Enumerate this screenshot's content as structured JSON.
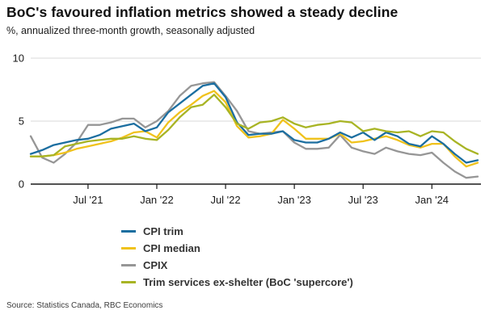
{
  "source": "Source: Statistics Canada, RBC Economics",
  "chart_data": {
    "type": "line",
    "title": "BoC's favoured inflation metrics showed a steady decline",
    "subtitle": "%, annualized three-month growth, seasonally adjusted",
    "xlabel": "",
    "ylabel": "%",
    "ylim": [
      0,
      10
    ],
    "y_ticks": [
      0,
      5,
      10
    ],
    "grid": "horizontal",
    "legend_position": "bottom-left",
    "x": [
      "Feb '21",
      "Mar '21",
      "Apr '21",
      "May '21",
      "Jun '21",
      "Jul '21",
      "Aug '21",
      "Sep '21",
      "Oct '21",
      "Nov '21",
      "Dec '21",
      "Jan '22",
      "Feb '22",
      "Mar '22",
      "Apr '22",
      "May '22",
      "Jun '22",
      "Jul '22",
      "Aug '22",
      "Sep '22",
      "Oct '22",
      "Nov '22",
      "Dec '22",
      "Jan '23",
      "Feb '23",
      "Mar '23",
      "Apr '23",
      "May '23",
      "Jun '23",
      "Jul '23",
      "Aug '23",
      "Sep '23",
      "Oct '23",
      "Nov '23",
      "Dec '23",
      "Jan '24",
      "Feb '24",
      "Mar '24",
      "Apr '24",
      "May '24"
    ],
    "x_tick_labels": [
      "Jul '21",
      "Jan '22",
      "Jul '22",
      "Jan '23",
      "Jul '23",
      "Jan '24"
    ],
    "x_tick_indices": [
      5,
      11,
      17,
      23,
      29,
      35
    ],
    "series": [
      {
        "name": "CPI trim",
        "color": "#1b6ea0",
        "values": [
          2.4,
          2.7,
          3.1,
          3.3,
          3.5,
          3.6,
          3.9,
          4.4,
          4.6,
          4.8,
          4.2,
          4.5,
          5.7,
          6.4,
          7.1,
          7.8,
          8.0,
          6.9,
          4.9,
          3.9,
          4.0,
          4.0,
          4.2,
          3.5,
          3.3,
          3.3,
          3.6,
          4.1,
          3.7,
          4.1,
          3.5,
          4.1,
          3.8,
          3.2,
          3.0,
          3.8,
          3.2,
          2.4,
          1.7,
          1.9
        ]
      },
      {
        "name": "CPI median",
        "color": "#f0c21c",
        "values": [
          2.2,
          2.2,
          2.3,
          2.5,
          2.8,
          3.0,
          3.2,
          3.4,
          3.7,
          4.1,
          4.2,
          3.7,
          4.9,
          5.7,
          6.3,
          7.0,
          7.4,
          6.5,
          4.6,
          3.7,
          3.8,
          4.0,
          5.1,
          4.4,
          3.6,
          3.6,
          3.6,
          4.0,
          3.3,
          3.4,
          3.6,
          3.8,
          3.5,
          3.1,
          2.9,
          3.2,
          3.2,
          2.2,
          1.4,
          1.7
        ]
      },
      {
        "name": "CPIX",
        "color": "#969696",
        "values": [
          3.8,
          2.1,
          1.7,
          2.4,
          3.3,
          4.7,
          4.7,
          4.9,
          5.2,
          5.2,
          4.5,
          5.0,
          5.8,
          7.0,
          7.8,
          8.0,
          8.1,
          7.0,
          5.8,
          4.2,
          4.0,
          4.1,
          4.2,
          3.3,
          2.8,
          2.8,
          2.9,
          3.9,
          2.9,
          2.6,
          2.4,
          2.9,
          2.6,
          2.4,
          2.3,
          2.5,
          1.7,
          1.0,
          0.5,
          0.6
        ]
      },
      {
        "name": "Trim services ex-shelter (BoC 'supercore')",
        "color": "#a8b424",
        "values": [
          2.2,
          2.2,
          2.3,
          3.0,
          3.2,
          3.4,
          3.5,
          3.6,
          3.6,
          3.8,
          3.6,
          3.5,
          4.3,
          5.3,
          6.1,
          6.3,
          7.1,
          6.1,
          4.8,
          4.4,
          4.9,
          5.0,
          5.3,
          4.8,
          4.5,
          4.7,
          4.8,
          5.0,
          4.9,
          4.2,
          4.4,
          4.2,
          4.1,
          4.2,
          3.8,
          4.2,
          4.1,
          3.4,
          2.8,
          2.4
        ]
      }
    ]
  }
}
